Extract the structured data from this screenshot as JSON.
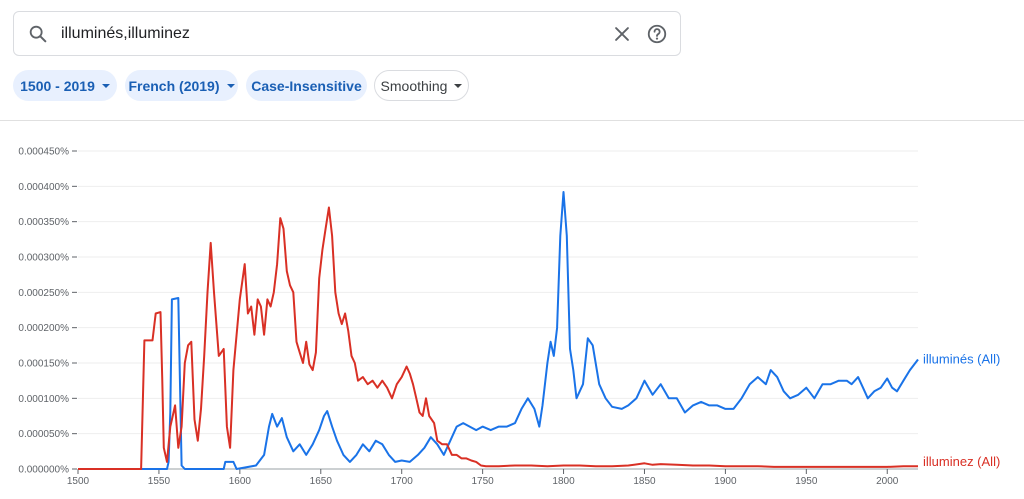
{
  "search": {
    "query": "illuminés,illuminez",
    "search_icon": "search-icon",
    "clear_icon": "close-icon",
    "help_icon": "help-circle-icon"
  },
  "filters": [
    {
      "label": "1500 - 2019",
      "style": "filled",
      "has_dropdown": true
    },
    {
      "label": "French (2019)",
      "style": "filled",
      "has_dropdown": true
    },
    {
      "label": "Case-Insensitive",
      "style": "filled",
      "has_dropdown": false
    },
    {
      "label": "Smoothing",
      "style": "outline",
      "has_dropdown": true
    }
  ],
  "colors": {
    "illumines": "#1a73e8",
    "illuminez": "#d93025",
    "chip_bg": "#e8f0fe",
    "chip_text": "#1a5fb4"
  },
  "chart_data": {
    "type": "line",
    "title": "",
    "xlabel": "",
    "ylabel": "",
    "xlim": [
      1500,
      2019
    ],
    "ylim": [
      0,
      0.00045
    ],
    "x_ticks": [
      "1500",
      "1550",
      "1600",
      "1650",
      "1700",
      "1750",
      "1800",
      "1850",
      "1900",
      "1950",
      "2000"
    ],
    "y_ticks": [
      "0.000000%",
      "0.000050%",
      "0.000100%",
      "0.000150%",
      "0.000200%",
      "0.000250%",
      "0.000300%",
      "0.000350%",
      "0.000400%",
      "0.000450%"
    ],
    "grid": true,
    "legend": "inline-right",
    "series": [
      {
        "name": "illuminés (All)",
        "color": "#1a73e8",
        "points": [
          [
            1500,
            0
          ],
          [
            1555,
            0
          ],
          [
            1556,
            1e-05
          ],
          [
            1557,
            8e-05
          ],
          [
            1558,
            0.00024
          ],
          [
            1562,
            0.000242
          ],
          [
            1563,
            0.00012
          ],
          [
            1564,
            5e-06
          ],
          [
            1566,
            0
          ],
          [
            1580,
            0
          ],
          [
            1590,
            0
          ],
          [
            1591,
            1e-05
          ],
          [
            1596,
            1e-05
          ],
          [
            1598,
            0
          ],
          [
            1610,
            5e-06
          ],
          [
            1615,
            2e-05
          ],
          [
            1618,
            6e-05
          ],
          [
            1620,
            7.8e-05
          ],
          [
            1623,
            6e-05
          ],
          [
            1626,
            7.2e-05
          ],
          [
            1629,
            4.5e-05
          ],
          [
            1633,
            2.5e-05
          ],
          [
            1637,
            3.5e-05
          ],
          [
            1641,
            2e-05
          ],
          [
            1645,
            3.5e-05
          ],
          [
            1649,
            5.5e-05
          ],
          [
            1652,
            7.5e-05
          ],
          [
            1654,
            8.2e-05
          ],
          [
            1657,
            6e-05
          ],
          [
            1660,
            4e-05
          ],
          [
            1664,
            2e-05
          ],
          [
            1668,
            1e-05
          ],
          [
            1672,
            2e-05
          ],
          [
            1676,
            3.5e-05
          ],
          [
            1680,
            2.5e-05
          ],
          [
            1684,
            4e-05
          ],
          [
            1688,
            3.5e-05
          ],
          [
            1692,
            2e-05
          ],
          [
            1696,
            1e-05
          ],
          [
            1700,
            1.2e-05
          ],
          [
            1705,
            1e-05
          ],
          [
            1710,
            2e-05
          ],
          [
            1714,
            3e-05
          ],
          [
            1718,
            4.5e-05
          ],
          [
            1722,
            3.5e-05
          ],
          [
            1726,
            2e-05
          ],
          [
            1730,
            4e-05
          ],
          [
            1734,
            6e-05
          ],
          [
            1738,
            6.5e-05
          ],
          [
            1742,
            6e-05
          ],
          [
            1746,
            5.5e-05
          ],
          [
            1750,
            6e-05
          ],
          [
            1755,
            5.5e-05
          ],
          [
            1760,
            6e-05
          ],
          [
            1765,
            6e-05
          ],
          [
            1770,
            6.5e-05
          ],
          [
            1774,
            8.5e-05
          ],
          [
            1778,
            0.0001
          ],
          [
            1782,
            8.5e-05
          ],
          [
            1785,
            6e-05
          ],
          [
            1787,
            9e-05
          ],
          [
            1790,
            0.00015
          ],
          [
            1792,
            0.00018
          ],
          [
            1794,
            0.00016
          ],
          [
            1796,
            0.0002
          ],
          [
            1798,
            0.00033
          ],
          [
            1800,
            0.000392
          ],
          [
            1802,
            0.00033
          ],
          [
            1804,
            0.00017
          ],
          [
            1806,
            0.00014
          ],
          [
            1808,
            0.0001
          ],
          [
            1812,
            0.00012
          ],
          [
            1815,
            0.000185
          ],
          [
            1818,
            0.000175
          ],
          [
            1822,
            0.00012
          ],
          [
            1826,
            0.0001
          ],
          [
            1830,
            8.8e-05
          ],
          [
            1836,
            8.5e-05
          ],
          [
            1840,
            9e-05
          ],
          [
            1845,
            0.0001
          ],
          [
            1850,
            0.000125
          ],
          [
            1855,
            0.000105
          ],
          [
            1860,
            0.00012
          ],
          [
            1865,
            0.0001
          ],
          [
            1870,
            0.0001
          ],
          [
            1875,
            8e-05
          ],
          [
            1880,
            9e-05
          ],
          [
            1885,
            9.5e-05
          ],
          [
            1890,
            9e-05
          ],
          [
            1895,
            9e-05
          ],
          [
            1900,
            8.5e-05
          ],
          [
            1905,
            8.5e-05
          ],
          [
            1910,
            0.0001
          ],
          [
            1915,
            0.00012
          ],
          [
            1920,
            0.00013
          ],
          [
            1925,
            0.00012
          ],
          [
            1928,
            0.00014
          ],
          [
            1932,
            0.00013
          ],
          [
            1936,
            0.00011
          ],
          [
            1940,
            0.0001
          ],
          [
            1945,
            0.000105
          ],
          [
            1950,
            0.000115
          ],
          [
            1955,
            0.0001
          ],
          [
            1960,
            0.00012
          ],
          [
            1965,
            0.00012
          ],
          [
            1970,
            0.000125
          ],
          [
            1975,
            0.000125
          ],
          [
            1978,
            0.00012
          ],
          [
            1982,
            0.00013
          ],
          [
            1985,
            0.000115
          ],
          [
            1988,
            0.0001
          ],
          [
            1992,
            0.00011
          ],
          [
            1996,
            0.000115
          ],
          [
            2000,
            0.000128
          ],
          [
            2003,
            0.000115
          ],
          [
            2006,
            0.00011
          ],
          [
            2010,
            0.000125
          ],
          [
            2014,
            0.00014
          ],
          [
            2019,
            0.000155
          ]
        ]
      },
      {
        "name": "illuminez (All)",
        "color": "#d93025",
        "points": [
          [
            1500,
            0
          ],
          [
            1539,
            0
          ],
          [
            1541,
            0.000182
          ],
          [
            1546,
            0.000182
          ],
          [
            1548,
            0.00022
          ],
          [
            1551,
            0.000222
          ],
          [
            1552,
            0.00013
          ],
          [
            1553,
            3e-05
          ],
          [
            1555,
            1e-05
          ],
          [
            1557,
            6e-05
          ],
          [
            1559,
            8e-05
          ],
          [
            1560,
            9e-05
          ],
          [
            1562,
            3e-05
          ],
          [
            1564,
            6e-05
          ],
          [
            1566,
            0.00015
          ],
          [
            1568,
            0.000175
          ],
          [
            1570,
            0.00018
          ],
          [
            1572,
            7e-05
          ],
          [
            1574,
            4e-05
          ],
          [
            1576,
            8.5e-05
          ],
          [
            1578,
            0.00016
          ],
          [
            1580,
            0.00025
          ],
          [
            1582,
            0.00032
          ],
          [
            1584,
            0.00025
          ],
          [
            1587,
            0.00016
          ],
          [
            1590,
            0.00017
          ],
          [
            1592,
            6e-05
          ],
          [
            1594,
            3e-05
          ],
          [
            1596,
            0.00014
          ],
          [
            1598,
            0.00019
          ],
          [
            1600,
            0.00024
          ],
          [
            1603,
            0.00029
          ],
          [
            1605,
            0.00022
          ],
          [
            1607,
            0.00023
          ],
          [
            1609,
            0.00019
          ],
          [
            1611,
            0.00024
          ],
          [
            1613,
            0.00023
          ],
          [
            1615,
            0.00019
          ],
          [
            1617,
            0.00024
          ],
          [
            1619,
            0.00023
          ],
          [
            1621,
            0.00025
          ],
          [
            1623,
            0.00029
          ],
          [
            1625,
            0.000355
          ],
          [
            1627,
            0.00034
          ],
          [
            1629,
            0.00028
          ],
          [
            1631,
            0.00026
          ],
          [
            1633,
            0.00025
          ],
          [
            1635,
            0.00018
          ],
          [
            1637,
            0.000165
          ],
          [
            1639,
            0.00015
          ],
          [
            1641,
            0.00018
          ],
          [
            1643,
            0.000148
          ],
          [
            1645,
            0.00014
          ],
          [
            1647,
            0.000165
          ],
          [
            1649,
            0.00027
          ],
          [
            1651,
            0.00031
          ],
          [
            1653,
            0.00034
          ],
          [
            1655,
            0.00037
          ],
          [
            1657,
            0.00033
          ],
          [
            1659,
            0.00025
          ],
          [
            1661,
            0.00022
          ],
          [
            1663,
            0.000205
          ],
          [
            1665,
            0.00022
          ],
          [
            1667,
            0.000195
          ],
          [
            1669,
            0.00016
          ],
          [
            1671,
            0.00015
          ],
          [
            1673,
            0.000125
          ],
          [
            1676,
            0.00013
          ],
          [
            1679,
            0.00012
          ],
          [
            1682,
            0.000125
          ],
          [
            1685,
            0.000115
          ],
          [
            1688,
            0.000125
          ],
          [
            1691,
            0.000115
          ],
          [
            1694,
            0.0001
          ],
          [
            1697,
            0.00012
          ],
          [
            1700,
            0.00013
          ],
          [
            1703,
            0.000145
          ],
          [
            1705,
            0.000135
          ],
          [
            1707,
            0.00012
          ],
          [
            1709,
            0.0001
          ],
          [
            1711,
            8e-05
          ],
          [
            1713,
            7.5e-05
          ],
          [
            1715,
            0.0001
          ],
          [
            1717,
            7.5e-05
          ],
          [
            1720,
            6.5e-05
          ],
          [
            1722,
            4e-05
          ],
          [
            1725,
            3.5e-05
          ],
          [
            1728,
            3.5e-05
          ],
          [
            1731,
            2e-05
          ],
          [
            1734,
            2e-05
          ],
          [
            1737,
            1.5e-05
          ],
          [
            1740,
            1.5e-05
          ],
          [
            1743,
            1.2e-05
          ],
          [
            1746,
            1e-05
          ],
          [
            1749,
            5e-06
          ],
          [
            1752,
            4e-06
          ],
          [
            1760,
            4e-06
          ],
          [
            1770,
            5e-06
          ],
          [
            1780,
            5e-06
          ],
          [
            1790,
            4e-06
          ],
          [
            1800,
            5e-06
          ],
          [
            1810,
            5e-06
          ],
          [
            1820,
            4e-06
          ],
          [
            1830,
            4e-06
          ],
          [
            1840,
            5e-06
          ],
          [
            1850,
            8e-06
          ],
          [
            1855,
            6e-06
          ],
          [
            1860,
            7e-06
          ],
          [
            1870,
            6e-06
          ],
          [
            1880,
            5e-06
          ],
          [
            1890,
            5e-06
          ],
          [
            1900,
            4e-06
          ],
          [
            1910,
            4e-06
          ],
          [
            1920,
            4e-06
          ],
          [
            1930,
            3e-06
          ],
          [
            1940,
            3e-06
          ],
          [
            1950,
            3e-06
          ],
          [
            1960,
            3e-06
          ],
          [
            1970,
            3e-06
          ],
          [
            1980,
            3e-06
          ],
          [
            1990,
            3e-06
          ],
          [
            2000,
            3e-06
          ],
          [
            2010,
            4e-06
          ],
          [
            2019,
            4e-06
          ]
        ]
      }
    ]
  }
}
